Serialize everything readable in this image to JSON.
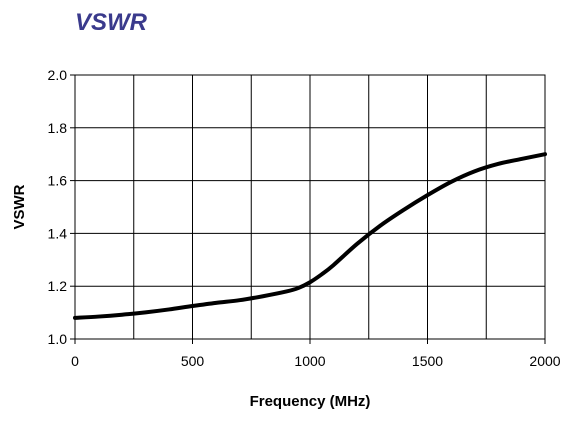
{
  "colors": {
    "title": "#3a3a8c",
    "line": "#000000",
    "grid": "#000000",
    "background": "#ffffff"
  },
  "chart_data": {
    "type": "line",
    "title": "VSWR",
    "xlabel": "Frequency (MHz)",
    "ylabel": "VSWR",
    "xlim": [
      0,
      2000
    ],
    "ylim": [
      1.0,
      2.0
    ],
    "x_ticks": [
      0,
      500,
      1000,
      1500,
      2000
    ],
    "x_tick_labels": [
      "0",
      "500",
      "1000",
      "1500",
      "2000"
    ],
    "y_ticks": [
      1.0,
      1.2,
      1.4,
      1.6,
      1.8,
      2.0
    ],
    "y_tick_labels": [
      "1.0",
      "1.2",
      "1.4",
      "1.6",
      "1.8",
      "2.0"
    ],
    "x_minor_gridlines": [
      250,
      750,
      1250,
      1750
    ],
    "grid": true,
    "legend": "none",
    "series": [
      {
        "x": [
          0,
          100,
          200,
          300,
          400,
          500,
          600,
          700,
          800,
          900,
          950,
          1000,
          1050,
          1100,
          1200,
          1300,
          1400,
          1500,
          1600,
          1700,
          1800,
          1900,
          2000
        ],
        "y": [
          1.08,
          1.085,
          1.092,
          1.101,
          1.112,
          1.125,
          1.137,
          1.147,
          1.162,
          1.18,
          1.193,
          1.215,
          1.245,
          1.28,
          1.36,
          1.43,
          1.49,
          1.545,
          1.595,
          1.635,
          1.663,
          1.682,
          1.7
        ]
      }
    ]
  }
}
